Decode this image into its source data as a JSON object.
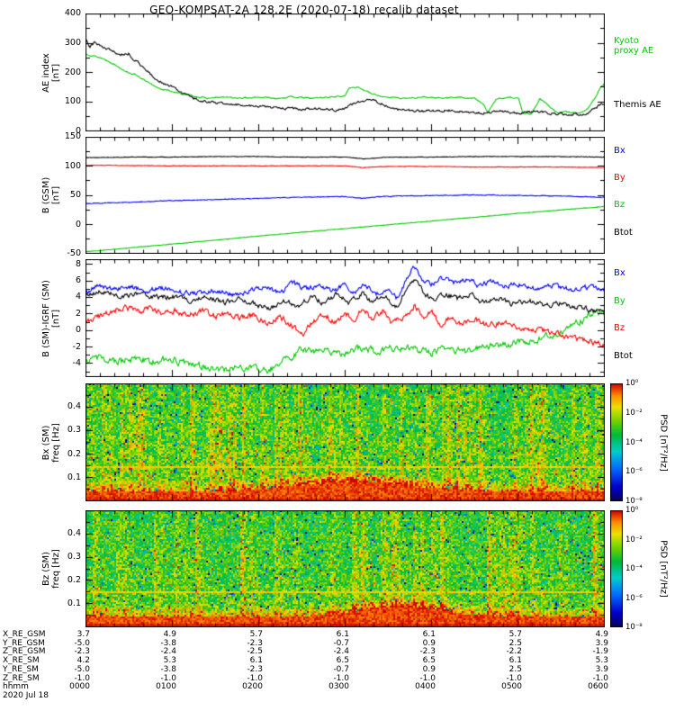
{
  "title": "GEO-KOMPSAT-2A 128.2E (2020-07-18) recalib dataset",
  "colors": {
    "black": "#000000",
    "green": "#00c800",
    "blue": "#0000ff",
    "red": "#ff0000"
  },
  "x_axis": {
    "units": "hhmm UT",
    "range_hours": [
      0,
      6
    ]
  },
  "chart_data": [
    {
      "id": "ae_index",
      "type": "line",
      "ylabel_lines": [
        "AE index",
        "[nT]"
      ],
      "ylim": [
        0,
        400
      ],
      "yticks": [
        0,
        100,
        200,
        300,
        400
      ],
      "xlim": [
        0,
        6
      ],
      "right_labels": [
        {
          "lines": [
            "Kyoto",
            "proxy AE"
          ],
          "color": "#00c800"
        },
        {
          "lines": [
            "Themis AE"
          ],
          "color": "#000000"
        }
      ],
      "series": [
        {
          "name": "Kyoto proxy AE",
          "color": "#00c800",
          "noise": 2,
          "x": [
            0,
            0.1,
            0.2,
            0.3,
            0.4,
            0.5,
            0.6,
            0.7,
            0.8,
            0.9,
            1.0,
            1.1,
            1.25,
            1.4,
            1.6,
            1.8,
            2.0,
            2.2,
            2.4,
            2.6,
            2.8,
            3.0,
            3.05,
            3.15,
            3.3,
            3.4,
            3.5,
            3.7,
            3.9,
            4.1,
            4.3,
            4.5,
            4.6,
            4.65,
            4.75,
            4.9,
            5.0,
            5.05,
            5.15,
            5.25,
            5.35,
            5.45,
            5.55,
            5.7,
            5.8,
            5.9,
            5.95,
            6.0
          ],
          "y": [
            262,
            255,
            246,
            232,
            214,
            198,
            188,
            168,
            150,
            140,
            134,
            126,
            118,
            110,
            114,
            110,
            114,
            110,
            115,
            110,
            114,
            118,
            148,
            148,
            126,
            118,
            114,
            110,
            114,
            110,
            114,
            110,
            88,
            62,
            108,
            114,
            112,
            62,
            56,
            108,
            86,
            60,
            64,
            60,
            72,
            118,
            150,
            160
          ]
        },
        {
          "name": "Themis AE",
          "color": "#000000",
          "noise": 4,
          "x": [
            0,
            0.05,
            0.1,
            0.2,
            0.3,
            0.4,
            0.5,
            0.55,
            0.6,
            0.7,
            0.8,
            0.9,
            1.0,
            1.1,
            1.2,
            1.3,
            1.4,
            1.5,
            1.7,
            1.9,
            2.1,
            2.3,
            2.5,
            2.7,
            2.9,
            3.0,
            3.1,
            3.2,
            3.3,
            3.4,
            3.5,
            3.6,
            3.8,
            4.0,
            4.2,
            4.4,
            4.6,
            4.8,
            5.0,
            5.2,
            5.4,
            5.6,
            5.8,
            5.9,
            6.0
          ],
          "y": [
            315,
            288,
            302,
            282,
            272,
            258,
            263,
            248,
            235,
            205,
            180,
            162,
            150,
            132,
            115,
            105,
            100,
            95,
            90,
            85,
            80,
            76,
            72,
            76,
            70,
            76,
            92,
            100,
            110,
            95,
            80,
            72,
            68,
            66,
            70,
            64,
            60,
            65,
            60,
            64,
            58,
            55,
            60,
            80,
            95
          ]
        }
      ]
    },
    {
      "id": "b_gsm",
      "type": "line",
      "ylabel_lines": [
        "B (GSM)",
        "[nT]"
      ],
      "ylim": [
        -50,
        150
      ],
      "yticks": [
        -50,
        0,
        50,
        100,
        150
      ],
      "xlim": [
        0,
        6
      ],
      "right_labels": [
        {
          "lines": [
            "Bx"
          ],
          "color": "#0000ff"
        },
        {
          "lines": [
            "By"
          ],
          "color": "#ff0000"
        },
        {
          "lines": [
            "Bz"
          ],
          "color": "#00c800"
        },
        {
          "lines": [
            "Btot"
          ],
          "color": "#000000"
        }
      ],
      "series": [
        {
          "name": "Bz",
          "color": "#00c800",
          "noise": 0.3,
          "x": [
            0,
            1,
            2,
            3,
            4,
            5,
            6
          ],
          "y": [
            -48,
            -35,
            -21,
            -8,
            5,
            18,
            30
          ]
        },
        {
          "name": "Bx",
          "color": "#0000ff",
          "noise": 0.5,
          "x": [
            0,
            0.5,
            1,
            1.5,
            2,
            2.5,
            3,
            3.2,
            3.4,
            3.7,
            4,
            4.5,
            5,
            5.5,
            6
          ],
          "y": [
            35,
            37,
            40,
            42,
            44,
            46,
            47,
            44,
            47,
            48,
            49,
            50,
            49,
            48,
            46
          ]
        },
        {
          "name": "By",
          "color": "#ff0000",
          "noise": 0.3,
          "x": [
            0,
            1,
            2,
            3,
            3.2,
            3.5,
            4,
            4.5,
            5,
            5.5,
            6
          ],
          "y": [
            101,
            100,
            100,
            100,
            97,
            99,
            99,
            98,
            98,
            98,
            97
          ]
        },
        {
          "name": "Btot",
          "color": "#000000",
          "noise": 0.3,
          "x": [
            0,
            0.5,
            1,
            1.5,
            2,
            2.5,
            3,
            3.2,
            3.5,
            4,
            4.5,
            5,
            5.5,
            6
          ],
          "y": [
            114,
            115,
            115,
            116,
            116,
            115,
            115,
            112,
            115,
            115,
            116,
            116,
            116,
            115
          ]
        }
      ]
    },
    {
      "id": "b_sm_minus_igrf",
      "type": "line",
      "ylabel_lines": [
        "B (SM)-IGRF (SM)",
        "[nT]"
      ],
      "ylim": [
        -5.6,
        8.6
      ],
      "yticks": [
        -4,
        -2,
        0,
        2,
        4,
        6,
        8
      ],
      "xlim": [
        0,
        6
      ],
      "right_labels": [
        {
          "lines": [
            "Bx"
          ],
          "color": "#0000ff"
        },
        {
          "lines": [
            "By"
          ],
          "color": "#00c800"
        },
        {
          "lines": [
            "Bz"
          ],
          "color": "#ff0000"
        },
        {
          "lines": [
            "Btot"
          ],
          "color": "#000000"
        }
      ],
      "series": [
        {
          "name": "By",
          "color": "#00c800",
          "noise": 0.4,
          "x": [
            0,
            0.2,
            0.4,
            0.6,
            0.8,
            1.0,
            1.2,
            1.4,
            1.6,
            1.8,
            2.0,
            2.1,
            2.25,
            2.4,
            2.5,
            2.65,
            2.8,
            3.0,
            3.2,
            3.4,
            3.6,
            3.8,
            4.0,
            4.2,
            4.4,
            4.6,
            4.8,
            5.0,
            5.2,
            5.4,
            5.55,
            5.7,
            5.8,
            5.9,
            6.0
          ],
          "y": [
            -3.8,
            -3.4,
            -3.8,
            -3.5,
            -3.9,
            -3.6,
            -4.2,
            -4.5,
            -4.8,
            -4.4,
            -4.8,
            -5.0,
            -4.2,
            -3.0,
            -2.2,
            -2.8,
            -2.4,
            -2.8,
            -2.2,
            -2.6,
            -2.0,
            -2.4,
            -2.8,
            -2.3,
            -2.6,
            -2.1,
            -1.8,
            -1.5,
            -1.2,
            -0.6,
            0.2,
            1.0,
            1.6,
            2.4,
            2.0
          ]
        },
        {
          "name": "Bz",
          "color": "#ff0000",
          "noise": 0.35,
          "x": [
            0,
            0.15,
            0.3,
            0.45,
            0.6,
            0.75,
            0.9,
            1.05,
            1.2,
            1.35,
            1.5,
            1.65,
            1.8,
            1.95,
            2.1,
            2.25,
            2.4,
            2.5,
            2.6,
            2.75,
            2.9,
            3.0,
            3.1,
            3.2,
            3.3,
            3.45,
            3.55,
            3.7,
            3.8,
            3.9,
            4.0,
            4.1,
            4.2,
            4.35,
            4.5,
            4.65,
            4.8,
            5.0,
            5.2,
            5.4,
            5.6,
            5.8,
            6.0
          ],
          "y": [
            0.8,
            1.6,
            2.4,
            2.8,
            2.2,
            2.6,
            2.0,
            2.4,
            1.8,
            2.2,
            1.6,
            2.0,
            1.4,
            1.8,
            1.0,
            1.6,
            0.4,
            -0.6,
            0.6,
            1.8,
            1.0,
            2.2,
            1.2,
            2.6,
            1.4,
            2.4,
            0.8,
            1.8,
            3.0,
            1.6,
            2.4,
            0.6,
            1.4,
            0.8,
            1.2,
            0.6,
            1.0,
            0.4,
            0.0,
            -0.4,
            -0.8,
            -1.4,
            -1.8
          ]
        },
        {
          "name": "Btot",
          "color": "#000000",
          "noise": 0.3,
          "x": [
            0,
            0.2,
            0.4,
            0.6,
            0.8,
            1.0,
            1.2,
            1.4,
            1.6,
            1.8,
            2.0,
            2.15,
            2.3,
            2.45,
            2.6,
            2.75,
            2.9,
            3.05,
            3.2,
            3.3,
            3.45,
            3.6,
            3.7,
            3.8,
            3.9,
            4.0,
            4.15,
            4.3,
            4.45,
            4.6,
            4.75,
            4.9,
            5.1,
            5.3,
            5.5,
            5.7,
            5.85,
            6.0
          ],
          "y": [
            4.3,
            4.8,
            4.0,
            4.5,
            3.9,
            4.1,
            3.5,
            3.9,
            3.3,
            3.7,
            3.0,
            2.6,
            3.5,
            2.8,
            4.1,
            3.2,
            4.4,
            3.2,
            4.7,
            3.4,
            4.4,
            2.8,
            4.8,
            6.3,
            4.6,
            3.7,
            4.4,
            3.8,
            4.2,
            3.4,
            3.8,
            3.2,
            3.6,
            3.0,
            3.3,
            2.8,
            2.4,
            2.2
          ]
        },
        {
          "name": "Bx",
          "color": "#0000ff",
          "noise": 0.3,
          "x": [
            0,
            0.15,
            0.3,
            0.5,
            0.7,
            0.9,
            1.1,
            1.3,
            1.5,
            1.7,
            1.9,
            2.1,
            2.25,
            2.4,
            2.55,
            2.7,
            2.85,
            3.0,
            3.1,
            3.2,
            3.35,
            3.5,
            3.6,
            3.7,
            3.8,
            3.9,
            4.0,
            4.1,
            4.25,
            4.4,
            4.55,
            4.7,
            4.85,
            5.0,
            5.2,
            5.4,
            5.6,
            5.8,
            6.0
          ],
          "y": [
            4.6,
            5.4,
            5.0,
            5.3,
            4.8,
            5.1,
            4.6,
            4.4,
            4.8,
            4.3,
            4.7,
            5.2,
            4.5,
            5.7,
            5.0,
            5.6,
            4.7,
            5.4,
            4.5,
            5.6,
            4.3,
            5.2,
            3.9,
            6.0,
            7.8,
            6.2,
            5.6,
            6.5,
            5.7,
            6.1,
            5.4,
            5.8,
            5.2,
            5.6,
            5.0,
            5.4,
            4.9,
            5.2,
            5.0
          ]
        }
      ]
    },
    {
      "id": "spectrogram_bx_sm",
      "type": "heatmap",
      "ylabel_lines": [
        "Bx (SM)",
        "freq [Hz]"
      ],
      "ylim": [
        0,
        0.5
      ],
      "yticks": [
        0.1,
        0.2,
        0.3,
        0.4
      ],
      "xlim": [
        0,
        6
      ],
      "colorbar": {
        "label": "PSD [nT²/Hz]",
        "ticks": [
          "10⁰",
          "10⁻²",
          "10⁻⁴",
          "10⁻⁶",
          "10⁻⁸"
        ]
      },
      "description": "Broadband PSD mostly 10⁻⁴–10⁻² nT²/Hz with dense vertical burst striping; strongest power near 10⁰ below ~0.05 Hz; thin enhanced line near 0.15 Hz",
      "texture": {
        "seed": 13,
        "stripe_prob": 0.22,
        "blob_center": 3.1,
        "blob_width": 0.9,
        "line_freq": 0.15
      }
    },
    {
      "id": "spectrogram_bz_sm",
      "type": "heatmap",
      "ylabel_lines": [
        "Bz (SM)",
        "freq [Hz]"
      ],
      "ylim": [
        0,
        0.5
      ],
      "yticks": [
        0.1,
        0.2,
        0.3,
        0.4
      ],
      "xlim": [
        0,
        6
      ],
      "colorbar": {
        "label": "PSD [nT²/Hz]",
        "ticks": [
          "10⁰",
          "10⁻²",
          "10⁻⁴",
          "10⁻⁶",
          "10⁻⁸"
        ]
      },
      "description": "More uniform green/cyan background PSD ~10⁻⁴–10⁻³ nT²/Hz; strong red band near 10⁰ below ~0.05 Hz, enhanced around 0330–0400; thin line near 0.15 Hz",
      "texture": {
        "seed": 47,
        "stripe_prob": 0.12,
        "blob_center": 3.6,
        "blob_width": 0.7,
        "line_freq": 0.15
      }
    }
  ],
  "bottom_axis": {
    "rows": [
      {
        "label": "X_RE_GSM",
        "values": [
          "3.7",
          "4.9",
          "5.7",
          "6.1",
          "6.1",
          "5.7",
          "4.9"
        ]
      },
      {
        "label": "Y_RE_GSM",
        "values": [
          "-5.0",
          "-3.8",
          "-2.3",
          "-0.7",
          "0.9",
          "2.5",
          "3.9"
        ]
      },
      {
        "label": "Z_RE_GSM",
        "values": [
          "-2.3",
          "-2.4",
          "-2.5",
          "-2.4",
          "-2.3",
          "-2.2",
          "-1.9"
        ]
      },
      {
        "label": "X_RE_SM",
        "values": [
          "4.2",
          "5.3",
          "6.1",
          "6.5",
          "6.5",
          "6.1",
          "5.3"
        ]
      },
      {
        "label": "Y_RE_SM",
        "values": [
          "-5.0",
          "-3.8",
          "-2.3",
          "-0.7",
          "0.9",
          "2.5",
          "3.9"
        ]
      },
      {
        "label": "Z_RE_SM",
        "values": [
          "-1.0",
          "-1.0",
          "-1.0",
          "-1.0",
          "-1.0",
          "-1.0",
          "-1.0"
        ]
      },
      {
        "label": "hhmm",
        "values": [
          "0000",
          "0100",
          "0200",
          "0300",
          "0400",
          "0500",
          "0600"
        ]
      }
    ],
    "date_label": "2020 Jul 18"
  }
}
